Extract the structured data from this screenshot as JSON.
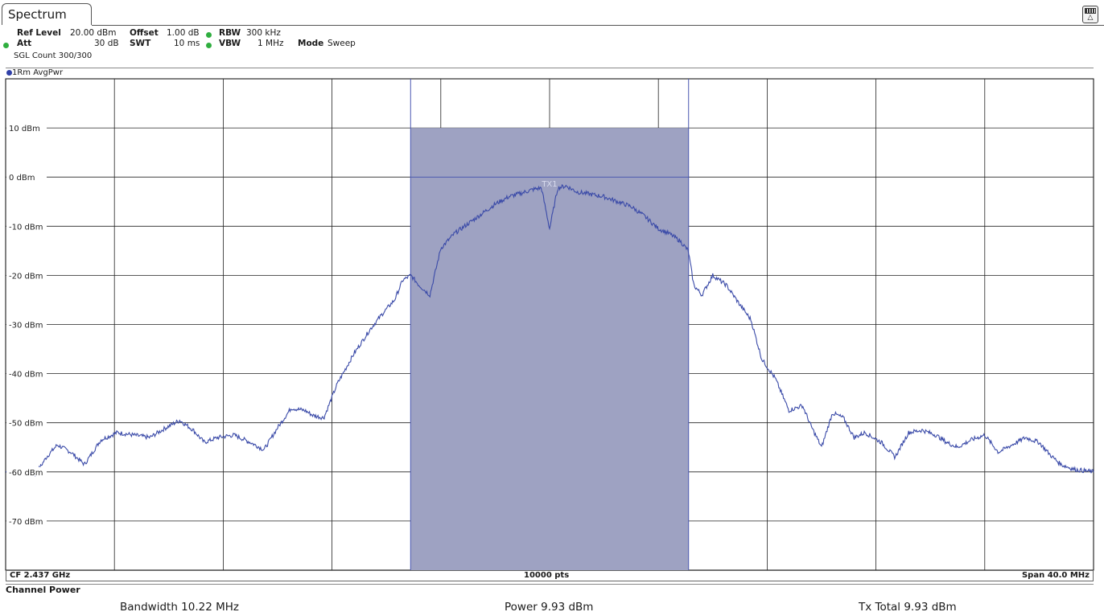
{
  "window": {
    "tab_label": "Spectrum"
  },
  "settings": {
    "ref_level_label": "Ref Level",
    "ref_level_value": "20.00 dBm",
    "offset_label": "Offset",
    "offset_value": "1.00 dB",
    "rbw_label": "RBW",
    "rbw_value": "300 kHz",
    "att_label": "Att",
    "att_value": "30 dB",
    "swt_label": "SWT",
    "swt_value": "10 ms",
    "vbw_label": "VBW",
    "vbw_value": "1 MHz",
    "mode_label": "Mode",
    "mode_value": "Sweep",
    "sgl_count": "SGL Count 300/300",
    "status_dot_color": "#2fae3f"
  },
  "trace": {
    "label": "1Rm AvgPwr",
    "color": "#3a4aa8"
  },
  "footer": {
    "cf": "CF 2.437 GHz",
    "points": "10000 pts",
    "span": "Span 40.0 MHz"
  },
  "channel_power": {
    "title": "Channel Power",
    "bandwidth": "Bandwidth  10.22 MHz",
    "power": "Power  9.93 dBm",
    "tx_total": "Tx Total  9.93 dBm"
  },
  "chart_data": {
    "type": "line",
    "title": "",
    "xlabel": "",
    "ylabel": "",
    "x_unit": "MHz offset from CF",
    "xlim": [
      -20,
      20
    ],
    "ylim": [
      -80,
      20
    ],
    "y_tick_labels": [
      "10 dBm",
      "0 dBm",
      "-10 dBm",
      "-20 dBm",
      "-30 dBm",
      "-40 dBm",
      "-50 dBm",
      "-60 dBm",
      "-70 dBm"
    ],
    "y_tick_values": [
      10,
      0,
      -10,
      -20,
      -30,
      -40,
      -50,
      -60,
      -70
    ],
    "grid": true,
    "channel": {
      "label": "TX1",
      "x_start": -5.11,
      "x_end": 5.11,
      "level": 10,
      "line_level": 0,
      "fill_color": "#9ea2c2"
    },
    "series": [
      {
        "color": "#3a4aa8",
        "x": [
          -20,
          -19.5,
          -18.9,
          -18.5,
          -18.1,
          -17.6,
          -17.1,
          -16.5,
          -15.9,
          -15.3,
          -14.7,
          -14.1,
          -13.6,
          -13.1,
          -12.7,
          -12.2,
          -11.6,
          -11.0,
          -10.5,
          -10.0,
          -9.5,
          -9.0,
          -8.7,
          -8.3,
          -7.8,
          -7.2,
          -6.6,
          -6.1,
          -5.7,
          -5.4,
          -5.1,
          -4.8,
          -4.4,
          -4.0,
          -3.5,
          -3.0,
          -2.5,
          -2.0,
          -1.5,
          -1.0,
          -0.6,
          -0.3,
          0.0,
          0.3,
          0.6,
          1.0,
          1.5,
          2.0,
          2.5,
          3.0,
          3.5,
          4.0,
          4.4,
          4.8,
          5.1,
          5.3,
          5.6,
          6.0,
          6.5,
          7.0,
          7.4,
          7.8,
          8.3,
          8.8,
          9.3,
          9.6,
          10.0,
          10.4,
          10.8,
          11.2,
          11.6,
          12.2,
          12.7,
          13.2,
          13.7,
          14.2,
          14.6,
          15.0,
          15.5,
          16.0,
          16.5,
          17.0,
          17.5,
          18.0,
          18.4,
          18.8,
          19.3,
          20.0
        ],
        "y": [
          -60,
          -60.2,
          -60.5,
          -57,
          -54.5,
          -56,
          -58.5,
          -53.5,
          -52,
          -52.5,
          -53,
          -51,
          -49.5,
          -51.5,
          -54,
          -53,
          -52.5,
          -54,
          -55.5,
          -51,
          -47,
          -47.5,
          -48.5,
          -49,
          -42,
          -36,
          -31,
          -27.5,
          -25,
          -21,
          -20,
          -22,
          -24,
          -14.5,
          -11.5,
          -9.5,
          -7.5,
          -5.5,
          -4,
          -3.2,
          -2.5,
          -2.2,
          -10.5,
          -2.2,
          -1.8,
          -3,
          -3.5,
          -4,
          -5,
          -6,
          -8,
          -10.5,
          -11.5,
          -13,
          -15,
          -22,
          -24,
          -20,
          -22,
          -26,
          -29,
          -37,
          -41,
          -47.5,
          -46.5,
          -50.5,
          -55,
          -48,
          -49,
          -53,
          -52,
          -54,
          -57,
          -52,
          -51.5,
          -52.5,
          -54,
          -55,
          -53.5,
          -52.5,
          -56,
          -54.5,
          -53,
          -54,
          -56.5,
          -58.5,
          -59.5,
          -60
        ]
      }
    ]
  }
}
